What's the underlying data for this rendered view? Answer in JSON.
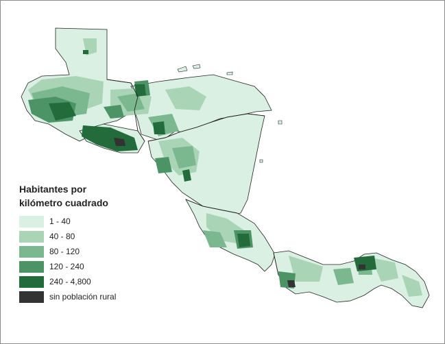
{
  "legend": {
    "title_line1": "Habitantes por",
    "title_line2": "kilómetro cuadrado",
    "items": [
      {
        "label": "1 - 40",
        "color": "#d9f0e2"
      },
      {
        "label": "40 - 80",
        "color": "#a9d4b6"
      },
      {
        "label": "80 - 120",
        "color": "#7cb88f"
      },
      {
        "label": "120 - 240",
        "color": "#4c9466"
      },
      {
        "label": "240 - 4,800",
        "color": "#236b3a"
      },
      {
        "label": "sin población rural",
        "color": "#333333"
      }
    ]
  },
  "colors": {
    "background": "#ffffff",
    "border": "#8a8a8a",
    "country_outline": "#222222"
  }
}
